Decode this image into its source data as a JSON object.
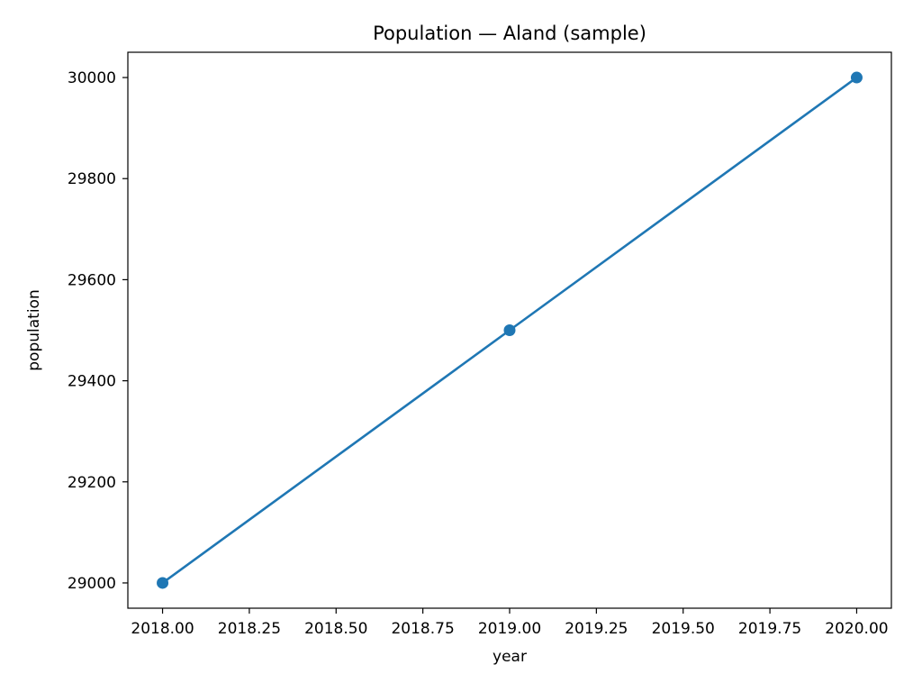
{
  "chart_data": {
    "type": "line",
    "title": "Population — Aland (sample)",
    "xlabel": "year",
    "ylabel": "population",
    "x": [
      2018,
      2019,
      2020
    ],
    "series": [
      {
        "values": [
          29000,
          29500,
          30000
        ],
        "color": "#1f77b4",
        "marker": "circle"
      }
    ],
    "xlim": [
      2017.9,
      2020.1
    ],
    "ylim": [
      28950,
      30050
    ],
    "xticks": [
      2018.0,
      2018.25,
      2018.5,
      2018.75,
      2019.0,
      2019.25,
      2019.5,
      2019.75,
      2020.0
    ],
    "xtick_labels": [
      "2018.00",
      "2018.25",
      "2018.50",
      "2018.75",
      "2019.00",
      "2019.25",
      "2019.50",
      "2019.75",
      "2020.00"
    ],
    "yticks": [
      29000,
      29200,
      29400,
      29600,
      29800,
      30000
    ],
    "ytick_labels": [
      "29000",
      "29200",
      "29400",
      "29600",
      "29800",
      "30000"
    ],
    "grid": false,
    "legend": "none"
  }
}
